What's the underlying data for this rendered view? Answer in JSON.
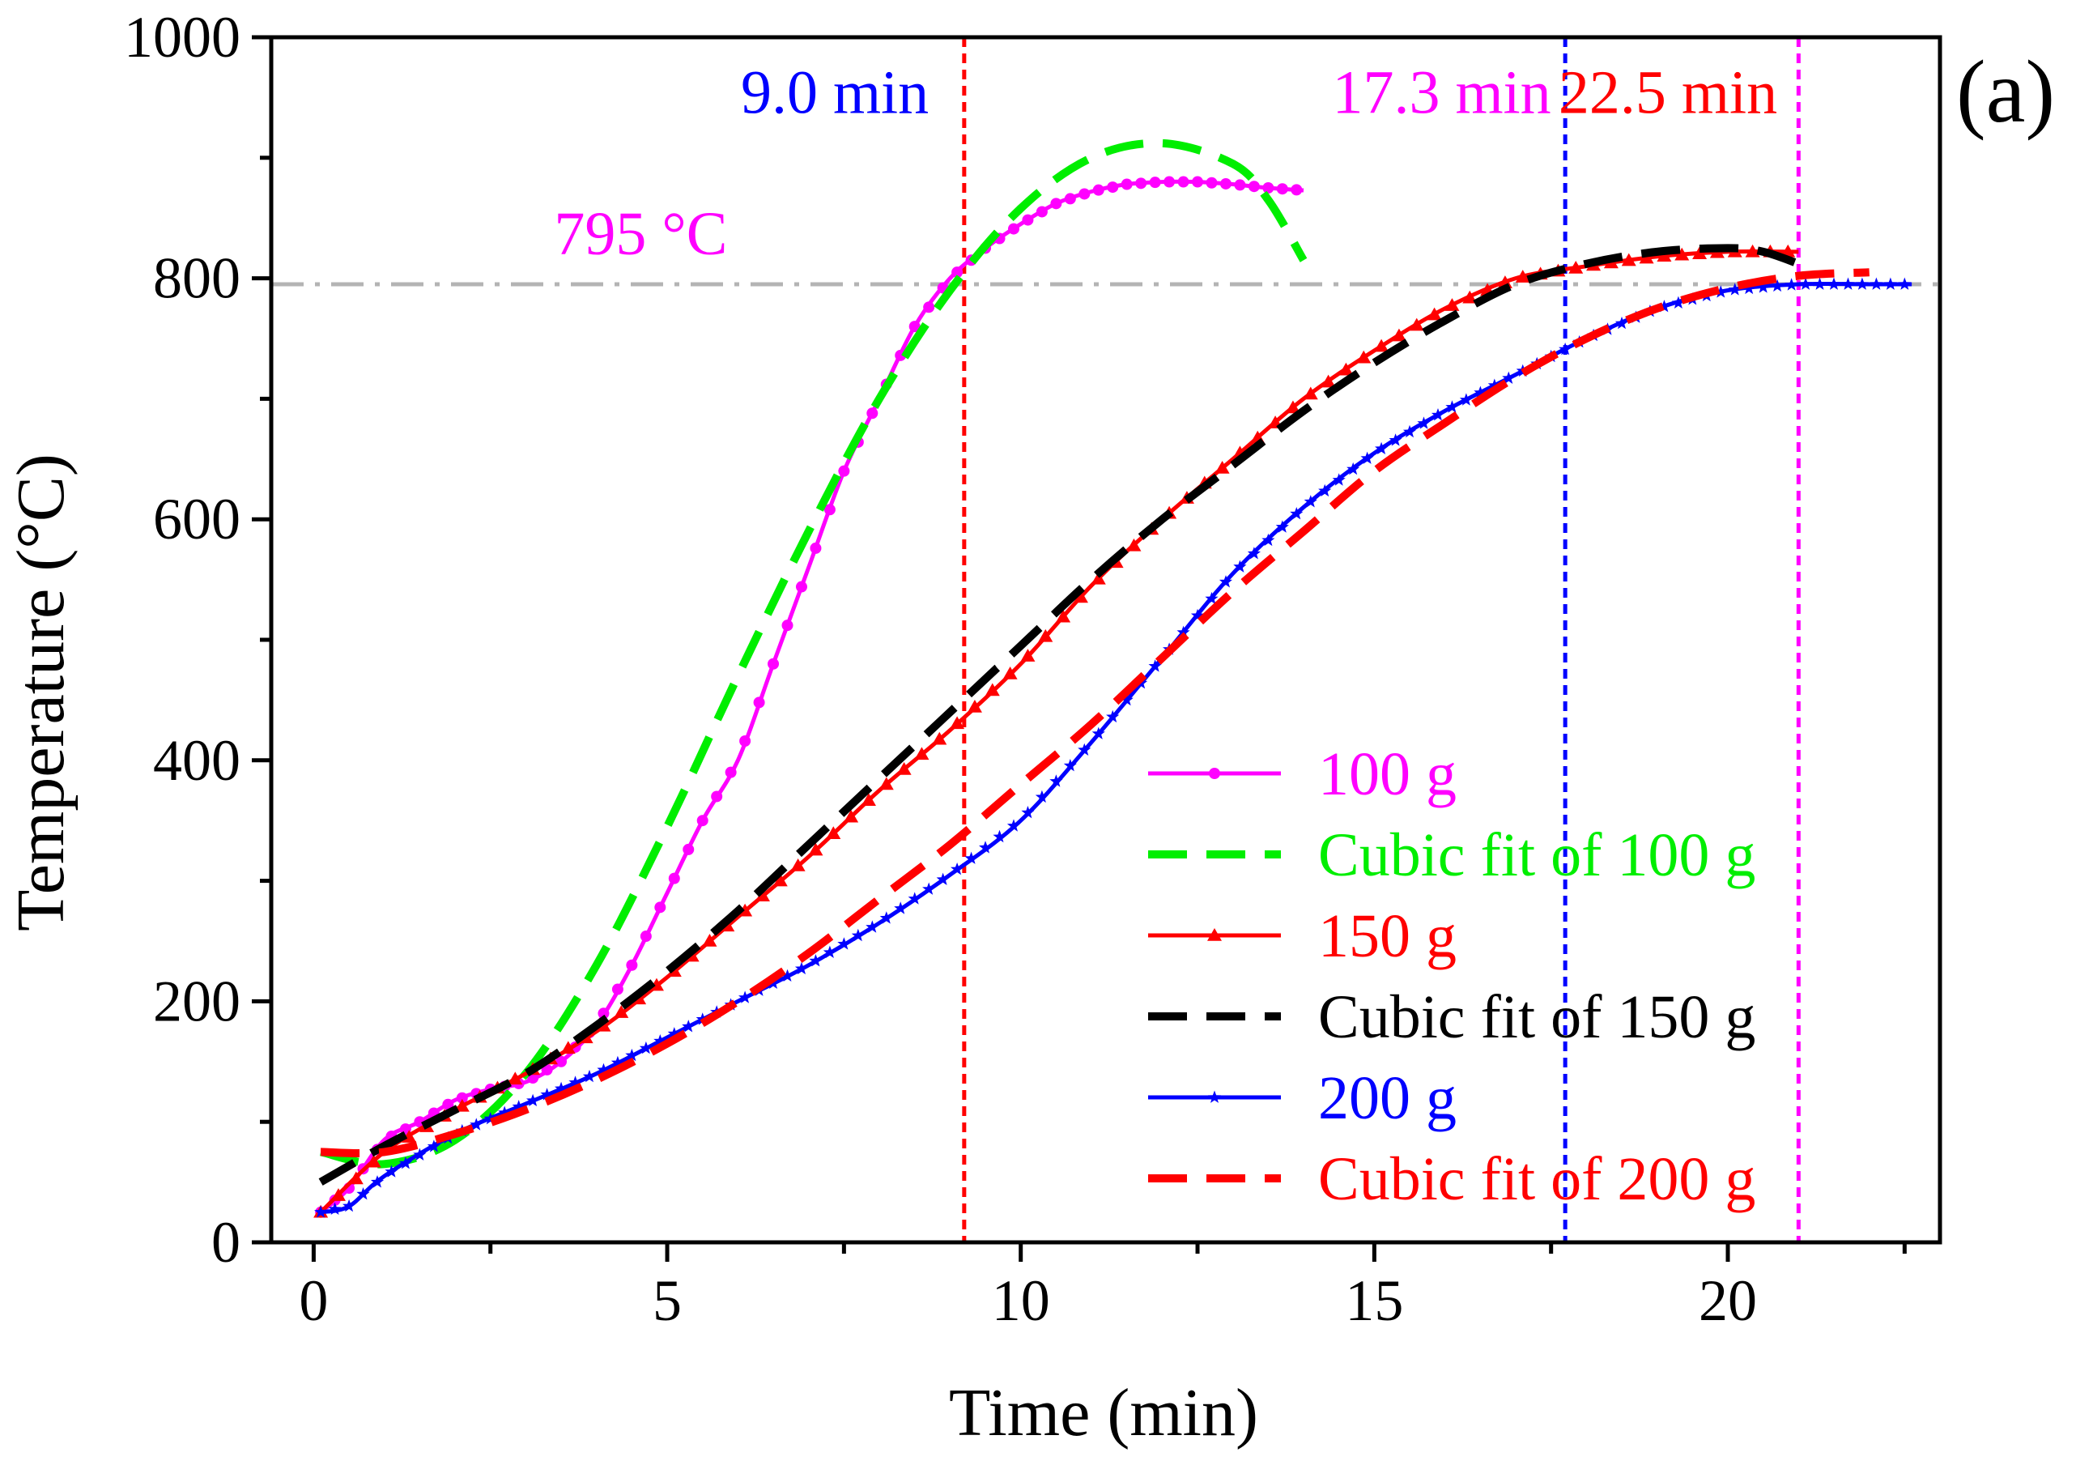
{
  "chart_data": {
    "type": "line",
    "panel_label": "(a)",
    "xlabel": "Time (min)",
    "ylabel": "Temperature (°C)",
    "xlim": [
      -0.6,
      23.0
    ],
    "ylim": [
      0,
      1000
    ],
    "xticks": [
      0,
      5,
      10,
      15,
      20
    ],
    "xminor": [
      2.5,
      7.5,
      12.5,
      17.5,
      22.5
    ],
    "yticks": [
      0,
      200,
      400,
      600,
      800,
      1000
    ],
    "yminor": [
      100,
      300,
      500,
      700,
      900
    ],
    "threshold": {
      "y": 795,
      "label": "795 °C",
      "color": "#b4b4b4"
    },
    "vlines": [
      {
        "x": 9.2,
        "color": "#ff0000"
      },
      {
        "x": 17.7,
        "color": "#0000ff"
      },
      {
        "x": 21.0,
        "color": "#ff00ff"
      }
    ],
    "annotations": [
      {
        "text": "9.0 min",
        "x": 8.7,
        "y": 937,
        "color": "#0000ff",
        "anchor": "end"
      },
      {
        "text": "17.3 min",
        "x": 17.5,
        "y": 937,
        "color": "#ff00ff",
        "anchor": "end"
      },
      {
        "text": "22.5 min",
        "x": 20.7,
        "y": 937,
        "color": "#ff0000",
        "anchor": "end"
      },
      {
        "text": "795 °C",
        "x": 3.4,
        "y": 820,
        "color": "#ff00ff",
        "anchor": "start"
      }
    ],
    "series": [
      {
        "name": "100 g",
        "color": "#ff00ff",
        "style": "solid",
        "marker": "circle",
        "points": [
          [
            0.1,
            25
          ],
          [
            0.5,
            45
          ],
          [
            1.0,
            85
          ],
          [
            1.5,
            100
          ],
          [
            2.0,
            118
          ],
          [
            2.5,
            127
          ],
          [
            3.0,
            133
          ],
          [
            3.5,
            150
          ],
          [
            4.0,
            180
          ],
          [
            4.5,
            230
          ],
          [
            5.0,
            290
          ],
          [
            5.5,
            350
          ],
          [
            6.0,
            400
          ],
          [
            6.5,
            480
          ],
          [
            7.0,
            560
          ],
          [
            7.5,
            640
          ],
          [
            8.0,
            700
          ],
          [
            8.5,
            760
          ],
          [
            9.0,
            800
          ],
          [
            9.5,
            825
          ],
          [
            10.0,
            845
          ],
          [
            10.5,
            862
          ],
          [
            11.0,
            872
          ],
          [
            11.5,
            878
          ],
          [
            12.0,
            880
          ],
          [
            12.5,
            880
          ],
          [
            13.0,
            878
          ],
          [
            13.5,
            875
          ],
          [
            14.0,
            873
          ]
        ]
      },
      {
        "name": "Cubic fit of 100 g",
        "color": "#00ee00",
        "style": "dash",
        "points": [
          [
            0.1,
            75
          ],
          [
            1.0,
            65
          ],
          [
            2.0,
            85
          ],
          [
            3.0,
            140
          ],
          [
            4.0,
            230
          ],
          [
            5.0,
            345
          ],
          [
            6.0,
            470
          ],
          [
            7.0,
            590
          ],
          [
            8.0,
            700
          ],
          [
            9.0,
            790
          ],
          [
            10.0,
            858
          ],
          [
            11.0,
            900
          ],
          [
            12.0,
            912
          ],
          [
            13.0,
            895
          ],
          [
            13.5,
            865
          ],
          [
            14.0,
            815
          ]
        ]
      },
      {
        "name": "150 g",
        "color": "#ff0000",
        "style": "solid",
        "marker": "triangle",
        "points": [
          [
            0.1,
            25
          ],
          [
            1.0,
            75
          ],
          [
            2.0,
            110
          ],
          [
            3.0,
            140
          ],
          [
            4.0,
            175
          ],
          [
            5.0,
            220
          ],
          [
            6.0,
            270
          ],
          [
            7.0,
            320
          ],
          [
            8.0,
            375
          ],
          [
            9.0,
            425
          ],
          [
            10.0,
            480
          ],
          [
            11.0,
            545
          ],
          [
            12.0,
            600
          ],
          [
            13.0,
            650
          ],
          [
            14.0,
            700
          ],
          [
            15.0,
            740
          ],
          [
            16.0,
            775
          ],
          [
            17.0,
            800
          ],
          [
            18.0,
            810
          ],
          [
            19.0,
            818
          ],
          [
            20.0,
            822
          ],
          [
            21.0,
            822
          ]
        ]
      },
      {
        "name": "Cubic fit of 150 g",
        "color": "#000000",
        "style": "dash",
        "points": [
          [
            0.1,
            50
          ],
          [
            1.0,
            80
          ],
          [
            2.0,
            110
          ],
          [
            3.0,
            140
          ],
          [
            4.0,
            180
          ],
          [
            5.0,
            225
          ],
          [
            6.0,
            275
          ],
          [
            7.0,
            330
          ],
          [
            8.0,
            385
          ],
          [
            9.0,
            440
          ],
          [
            10.0,
            495
          ],
          [
            11.0,
            550
          ],
          [
            12.0,
            600
          ],
          [
            13.0,
            645
          ],
          [
            14.0,
            690
          ],
          [
            15.0,
            730
          ],
          [
            16.0,
            765
          ],
          [
            17.0,
            795
          ],
          [
            18.0,
            812
          ],
          [
            19.0,
            822
          ],
          [
            20.0,
            825
          ],
          [
            20.5,
            822
          ],
          [
            21.0,
            812
          ]
        ]
      },
      {
        "name": "200 g",
        "color": "#0000ff",
        "style": "solid",
        "marker": "star",
        "points": [
          [
            0.1,
            25
          ],
          [
            0.5,
            30
          ],
          [
            1.0,
            55
          ],
          [
            2.0,
            90
          ],
          [
            3.0,
            115
          ],
          [
            4.0,
            140
          ],
          [
            5.0,
            170
          ],
          [
            6.0,
            200
          ],
          [
            7.0,
            230
          ],
          [
            8.0,
            265
          ],
          [
            9.0,
            305
          ],
          [
            10.0,
            350
          ],
          [
            11.0,
            415
          ],
          [
            12.0,
            485
          ],
          [
            13.0,
            555
          ],
          [
            14.0,
            610
          ],
          [
            15.0,
            655
          ],
          [
            16.0,
            690
          ],
          [
            17.0,
            720
          ],
          [
            18.0,
            750
          ],
          [
            19.0,
            775
          ],
          [
            20.0,
            790
          ],
          [
            21.0,
            795
          ],
          [
            22.0,
            795
          ],
          [
            22.6,
            795
          ]
        ]
      },
      {
        "name": "Cubic fit of 200 g",
        "color": "#ff0000",
        "style": "dash",
        "points": [
          [
            0.1,
            75
          ],
          [
            1.0,
            75
          ],
          [
            2.0,
            90
          ],
          [
            3.0,
            110
          ],
          [
            4.0,
            135
          ],
          [
            5.0,
            165
          ],
          [
            6.0,
            200
          ],
          [
            7.0,
            240
          ],
          [
            8.0,
            285
          ],
          [
            9.0,
            330
          ],
          [
            10.0,
            380
          ],
          [
            11.0,
            430
          ],
          [
            12.0,
            485
          ],
          [
            13.0,
            540
          ],
          [
            14.0,
            590
          ],
          [
            15.0,
            640
          ],
          [
            16.0,
            680
          ],
          [
            17.0,
            718
          ],
          [
            18.0,
            750
          ],
          [
            19.0,
            775
          ],
          [
            20.0,
            792
          ],
          [
            21.0,
            802
          ],
          [
            22.0,
            805
          ]
        ]
      }
    ]
  }
}
